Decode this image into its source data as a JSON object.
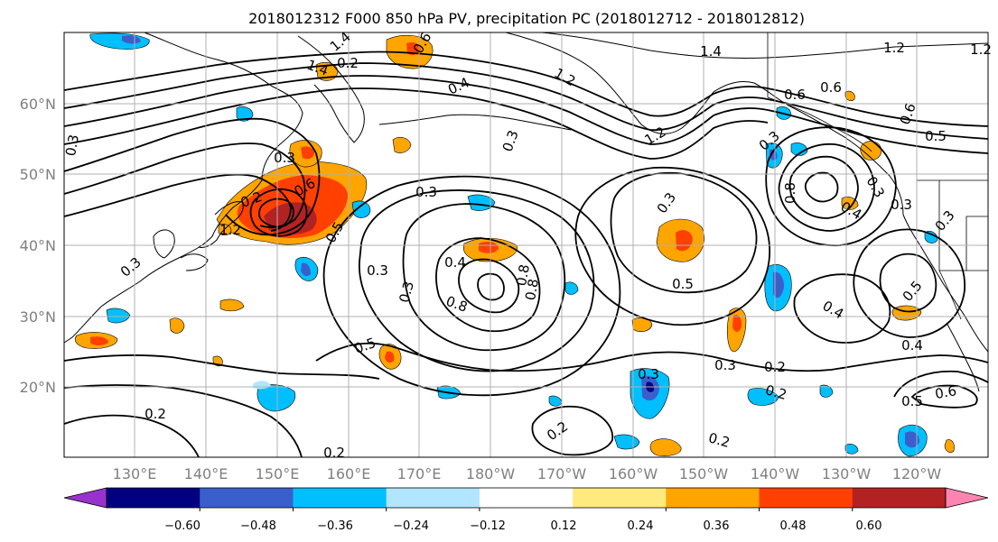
{
  "title": "2018012312 F000 850 hPa PV, precipitation PC (2018012712 - 2018012812)",
  "map": {
    "lat_labels": [
      "60°N",
      "50°N",
      "40°N",
      "30°N",
      "20°N"
    ],
    "lon_labels": [
      "130°E",
      "140°E",
      "150°E",
      "160°E",
      "170°E",
      "180°W",
      "170°W",
      "160°W",
      "150°W",
      "140°W",
      "130°W",
      "120°W"
    ],
    "grid": "on",
    "colors": {
      "land_outline": "#000000",
      "grid": "#b0b0b0",
      "contour": "#000000"
    }
  },
  "colorbar": {
    "tick_labels": [
      "−0.60",
      "−0.48",
      "−0.36",
      "−0.24",
      "−0.12",
      "0.12",
      "0.24",
      "0.36",
      "0.48",
      "0.60"
    ],
    "colors": [
      "#9932cc",
      "#000080",
      "#3a5fcd",
      "#00bfff",
      "#b2e5ff",
      "#ffffff",
      "#ffea80",
      "#ffa500",
      "#ff4000",
      "#b22222",
      "#ff85b0"
    ],
    "extend": "both"
  },
  "contour_labels": [
    "1.4",
    "0.6",
    "0.2",
    "0.4",
    "0.3",
    "1.4",
    "1.2",
    "0.6",
    "0.3",
    "0.3",
    "0.2",
    "0.5",
    "0.6",
    "0.3",
    "0.3",
    "0.3",
    "0.5",
    "0.4",
    "0.8",
    "0.8",
    "0.3",
    "0.8",
    "0.5",
    "0.3",
    "0.3",
    "0.4",
    "0.8",
    "0.4",
    "0.5",
    "0.3",
    "0.2",
    "0.2",
    "0.3",
    "0.4",
    "0.5",
    "0.6",
    "0.2",
    "0.2",
    "0.2",
    "0.2",
    "0.3",
    "0.3",
    "1.4",
    "1.2",
    "1.2",
    "0.6",
    "1.2",
    "0.5",
    "1.2",
    "0.3",
    "0.6"
  ]
}
